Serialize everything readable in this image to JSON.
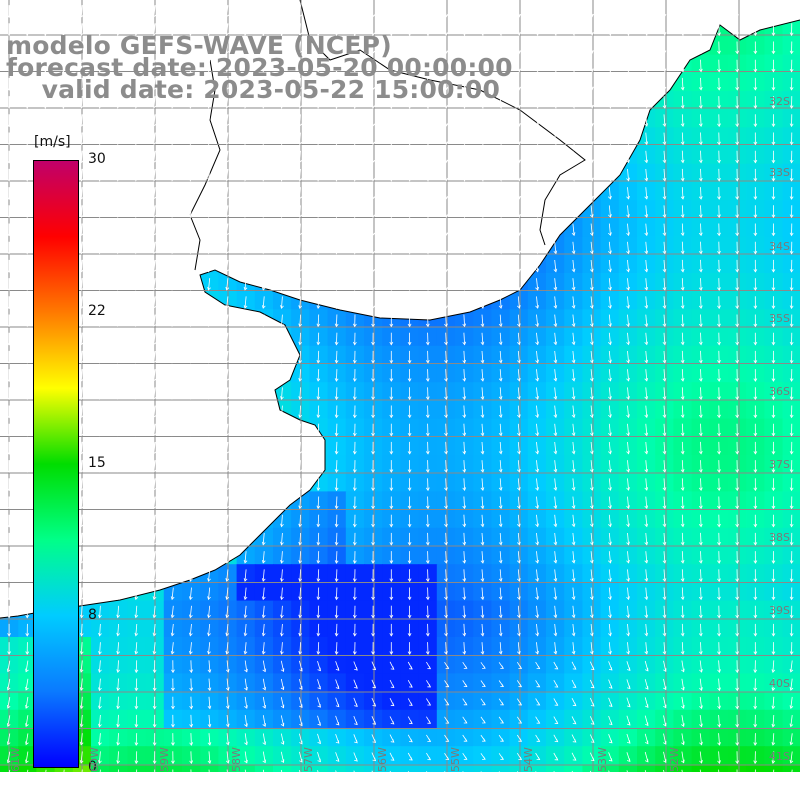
{
  "title": {
    "line1": "modelo GEFS-WAVE (NCEP)",
    "line2": "forecast date: 2023-05-20 00:00:00",
    "line3": "    valid date: 2023-05-22 15:00:00"
  },
  "colorbar": {
    "unit": "[m/s]",
    "ticks": [
      "30",
      "22",
      "15",
      "8",
      "0"
    ],
    "colors": [
      "#0000ff",
      "#0a7aff",
      "#00ccff",
      "#00ff88",
      "#00dd00",
      "#ffff00",
      "#ff7a00",
      "#ff0000",
      "#c0006a"
    ]
  },
  "lat_labels": [
    "32S",
    "33S",
    "34S",
    "35S",
    "36S",
    "37S",
    "38S",
    "39S",
    "40S",
    "41S"
  ],
  "lon_labels": [
    "61W",
    "60W",
    "59W",
    "58W",
    "57W",
    "56W",
    "55W",
    "54W",
    "53W",
    "52W"
  ],
  "map": {
    "land_color": "#ffffff",
    "grid_color": "#8a8a8a",
    "coast_color": "#000000",
    "arrow_color": "#ffffff"
  }
}
